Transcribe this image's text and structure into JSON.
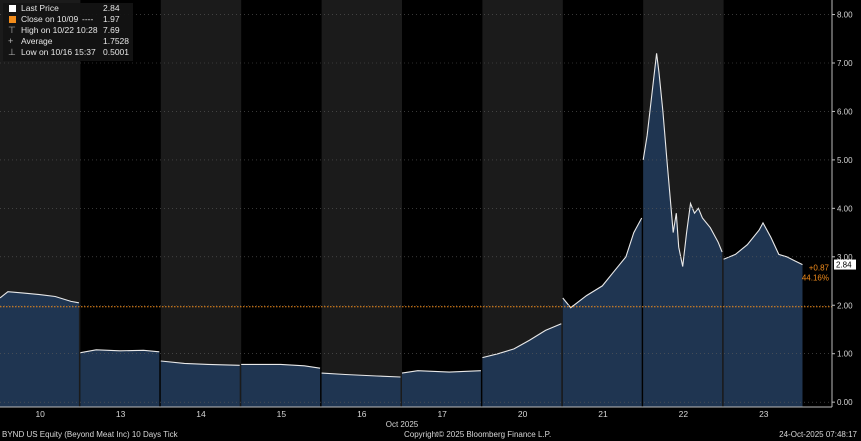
{
  "legend": {
    "last_price_label": "Last Price",
    "last_price_value": "2.84",
    "close_label": "Close on 10/09",
    "close_dash": "----",
    "close_value": "1.97",
    "high_label": "High on 10/22 10:28",
    "high_value": "7.69",
    "average_label": "Average",
    "average_value": "1.7528",
    "low_label": "Low on 10/16 15:37",
    "low_value": "0.5001"
  },
  "tags": {
    "last": "2.84",
    "change": "+0.87",
    "change_pct": "44.16%"
  },
  "footer": {
    "left": "BYND US Equity (Beyond Meat Inc) 10 Days Tick",
    "center": "Copyright© 2025 Bloomberg Finance L.P.",
    "right": "24-Oct-2025 07:48:17"
  },
  "colors": {
    "background": "#000000",
    "shade": "#1b1b1b",
    "area_fill": "#1f3551",
    "price_line": "#e9e9e9",
    "close_line": "#f28c1b",
    "last_tag_bg": "#ffffff",
    "change_text": "#f28c1b"
  },
  "chart_data": {
    "type": "area",
    "title": "",
    "xlabel": "Oct 2025",
    "ylabel": "",
    "x_ticks": [
      "10",
      "13",
      "14",
      "15",
      "16",
      "17",
      "20",
      "21",
      "22",
      "23"
    ],
    "y_ticks": [
      "0.00",
      "1.00",
      "2.00",
      "3.00",
      "4.00",
      "5.00",
      "6.00",
      "7.00",
      "8.00"
    ],
    "ylim": [
      -0.1,
      8.3
    ],
    "y_axis_position": "right",
    "grid": "horizontal dotted",
    "alternating_day_shading": true,
    "reference_lines": [
      {
        "name": "Close on 10/09",
        "value": 1.97
      }
    ],
    "series": [
      {
        "name": "Last Price",
        "days": [
          {
            "day": "10",
            "points": [
              [
                0,
                2.15
              ],
              [
                0.1,
                2.28
              ],
              [
                0.3,
                2.25
              ],
              [
                0.5,
                2.22
              ],
              [
                0.7,
                2.18
              ],
              [
                0.9,
                2.08
              ],
              [
                1,
                2.05
              ]
            ]
          },
          {
            "day": "13",
            "points": [
              [
                0,
                1.02
              ],
              [
                0.2,
                1.08
              ],
              [
                0.5,
                1.06
              ],
              [
                0.8,
                1.07
              ],
              [
                1,
                1.04
              ]
            ]
          },
          {
            "day": "14",
            "points": [
              [
                0,
                0.85
              ],
              [
                0.3,
                0.8
              ],
              [
                0.6,
                0.78
              ],
              [
                1,
                0.76
              ]
            ]
          },
          {
            "day": "15",
            "points": [
              [
                0,
                0.78
              ],
              [
                0.5,
                0.78
              ],
              [
                0.8,
                0.75
              ],
              [
                1,
                0.7
              ]
            ]
          },
          {
            "day": "16",
            "points": [
              [
                0,
                0.6
              ],
              [
                0.3,
                0.57
              ],
              [
                0.7,
                0.54
              ],
              [
                1,
                0.52
              ]
            ]
          },
          {
            "day": "17",
            "points": [
              [
                0,
                0.6
              ],
              [
                0.2,
                0.65
              ],
              [
                0.6,
                0.62
              ],
              [
                1,
                0.65
              ]
            ]
          },
          {
            "day": "20",
            "points": [
              [
                0,
                0.92
              ],
              [
                0.2,
                1.0
              ],
              [
                0.4,
                1.1
              ],
              [
                0.6,
                1.28
              ],
              [
                0.8,
                1.48
              ],
              [
                1,
                1.62
              ]
            ]
          },
          {
            "day": "21",
            "points": [
              [
                0,
                2.15
              ],
              [
                0.1,
                1.95
              ],
              [
                0.3,
                2.2
              ],
              [
                0.5,
                2.4
              ],
              [
                0.65,
                2.7
              ],
              [
                0.8,
                3.0
              ],
              [
                0.9,
                3.5
              ],
              [
                1,
                3.8
              ]
            ]
          },
          {
            "day": "22",
            "points": [
              [
                0,
                5.0
              ],
              [
                0.05,
                5.5
              ],
              [
                0.12,
                6.5
              ],
              [
                0.17,
                7.2
              ],
              [
                0.2,
                6.8
              ],
              [
                0.25,
                6.0
              ],
              [
                0.3,
                5.0
              ],
              [
                0.38,
                3.5
              ],
              [
                0.42,
                3.9
              ],
              [
                0.45,
                3.2
              ],
              [
                0.5,
                2.8
              ],
              [
                0.55,
                3.5
              ],
              [
                0.6,
                4.1
              ],
              [
                0.65,
                3.9
              ],
              [
                0.7,
                4.0
              ],
              [
                0.75,
                3.8
              ],
              [
                0.85,
                3.6
              ],
              [
                0.95,
                3.3
              ],
              [
                1,
                3.1
              ]
            ]
          },
          {
            "day": "23",
            "points": [
              [
                0,
                2.95
              ],
              [
                0.15,
                3.05
              ],
              [
                0.3,
                3.25
              ],
              [
                0.45,
                3.55
              ],
              [
                0.5,
                3.7
              ],
              [
                0.6,
                3.4
              ],
              [
                0.7,
                3.05
              ],
              [
                0.8,
                3.0
              ],
              [
                0.9,
                2.92
              ],
              [
                1,
                2.84
              ]
            ]
          }
        ]
      }
    ]
  }
}
